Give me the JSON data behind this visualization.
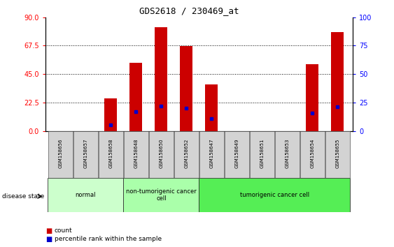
{
  "title": "GDS2618 / 230469_at",
  "samples": [
    "GSM158656",
    "GSM158657",
    "GSM158658",
    "GSM158648",
    "GSM158650",
    "GSM158652",
    "GSM158647",
    "GSM158649",
    "GSM158651",
    "GSM158653",
    "GSM158654",
    "GSM158655"
  ],
  "counts": [
    0,
    0,
    26,
    54,
    82,
    67,
    37,
    0,
    0,
    0,
    53,
    78
  ],
  "percentile_ranks": [
    0,
    0,
    5,
    17,
    22,
    20,
    11,
    0,
    0,
    0,
    16,
    21
  ],
  "groups": [
    {
      "label": "normal",
      "start": 0,
      "end": 3,
      "color": "#ccffcc"
    },
    {
      "label": "non-tumorigenic cancer\ncell",
      "start": 3,
      "end": 6,
      "color": "#aaffaa"
    },
    {
      "label": "tumorigenic cancer cell",
      "start": 6,
      "end": 12,
      "color": "#55ee55"
    }
  ],
  "ylim_left": [
    0,
    90
  ],
  "ylim_right": [
    0,
    100
  ],
  "yticks_left": [
    0,
    22.5,
    45,
    67.5,
    90
  ],
  "yticks_right": [
    0,
    25,
    50,
    75,
    100
  ],
  "bar_color": "#cc0000",
  "dot_color": "#0000cc",
  "bar_width": 0.5,
  "disease_state_label": "disease state"
}
